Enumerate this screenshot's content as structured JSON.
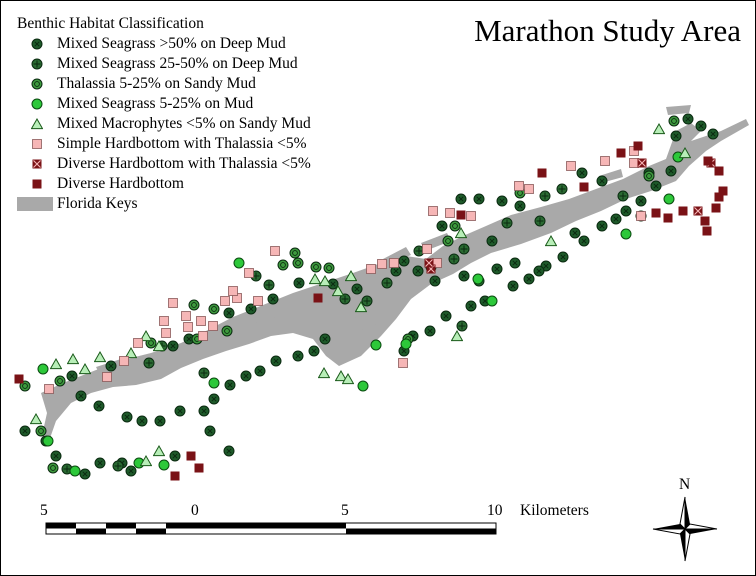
{
  "title": "Marathon Study Area",
  "legend": {
    "title": "Benthic Habitat Classification",
    "items": [
      {
        "key": "dark-cross",
        "label": "Mixed Seagrass >50% on Deep Mud"
      },
      {
        "key": "dark-plus",
        "label": "Mixed Seagrass 25-50% on Deep Mud"
      },
      {
        "key": "mid-ring",
        "label": "Thalassia  5-25% on Sandy Mud"
      },
      {
        "key": "bright",
        "label": "Mixed Seagrass 5-25% on Mud"
      },
      {
        "key": "triangle",
        "label": "Mixed Macrophytes <5% on Sandy Mud"
      },
      {
        "key": "pink-square",
        "label": "Simple Hardbottom with Thalassia <5%"
      },
      {
        "key": "x-square",
        "label": "Diverse Hardbottom  with Thalassia <5%"
      },
      {
        "key": "maroon-square",
        "label": "Diverse Hardbottom"
      },
      {
        "key": "land",
        "label": "Florida Keys"
      }
    ]
  },
  "scale_bar": {
    "labels": [
      "5",
      "0",
      "5",
      "10"
    ],
    "unit": "Kilometers"
  },
  "north_arrow": {
    "label": "N"
  },
  "colors": {
    "dark_green": "#1e5a2a",
    "mid_green": "#3e9a3e",
    "bright_green": "#2dc83a",
    "triangle_fill": "#b8eeb8",
    "pink": "#f6b6b6",
    "maroon": "#7a1216",
    "land": "#a9a9a9"
  }
}
